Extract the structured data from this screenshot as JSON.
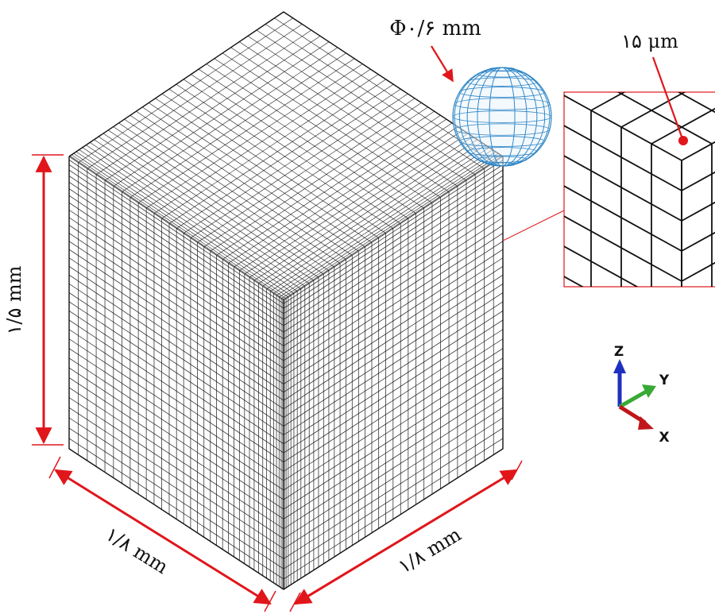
{
  "labels": {
    "particle_diameter": "Φ۰/۶ mm",
    "element_size": "۱۵ μm",
    "height": "۱/۵ mm",
    "depth_left": "۱/۸ mm",
    "width_right": "۱/۸ mm"
  },
  "axes": {
    "z": "Z",
    "y": "Y",
    "x": "X"
  },
  "colors": {
    "dimension": "#e0161b",
    "mesh": "#1a1a1a",
    "sphere": "#2f86c6",
    "axis_z": "#1f2fbf",
    "axis_y": "#39a935",
    "axis_x": "#c0161b"
  },
  "mesh": {
    "layers_z": 35,
    "divisions_x": 36,
    "divisions_y": 36,
    "biased": true
  }
}
